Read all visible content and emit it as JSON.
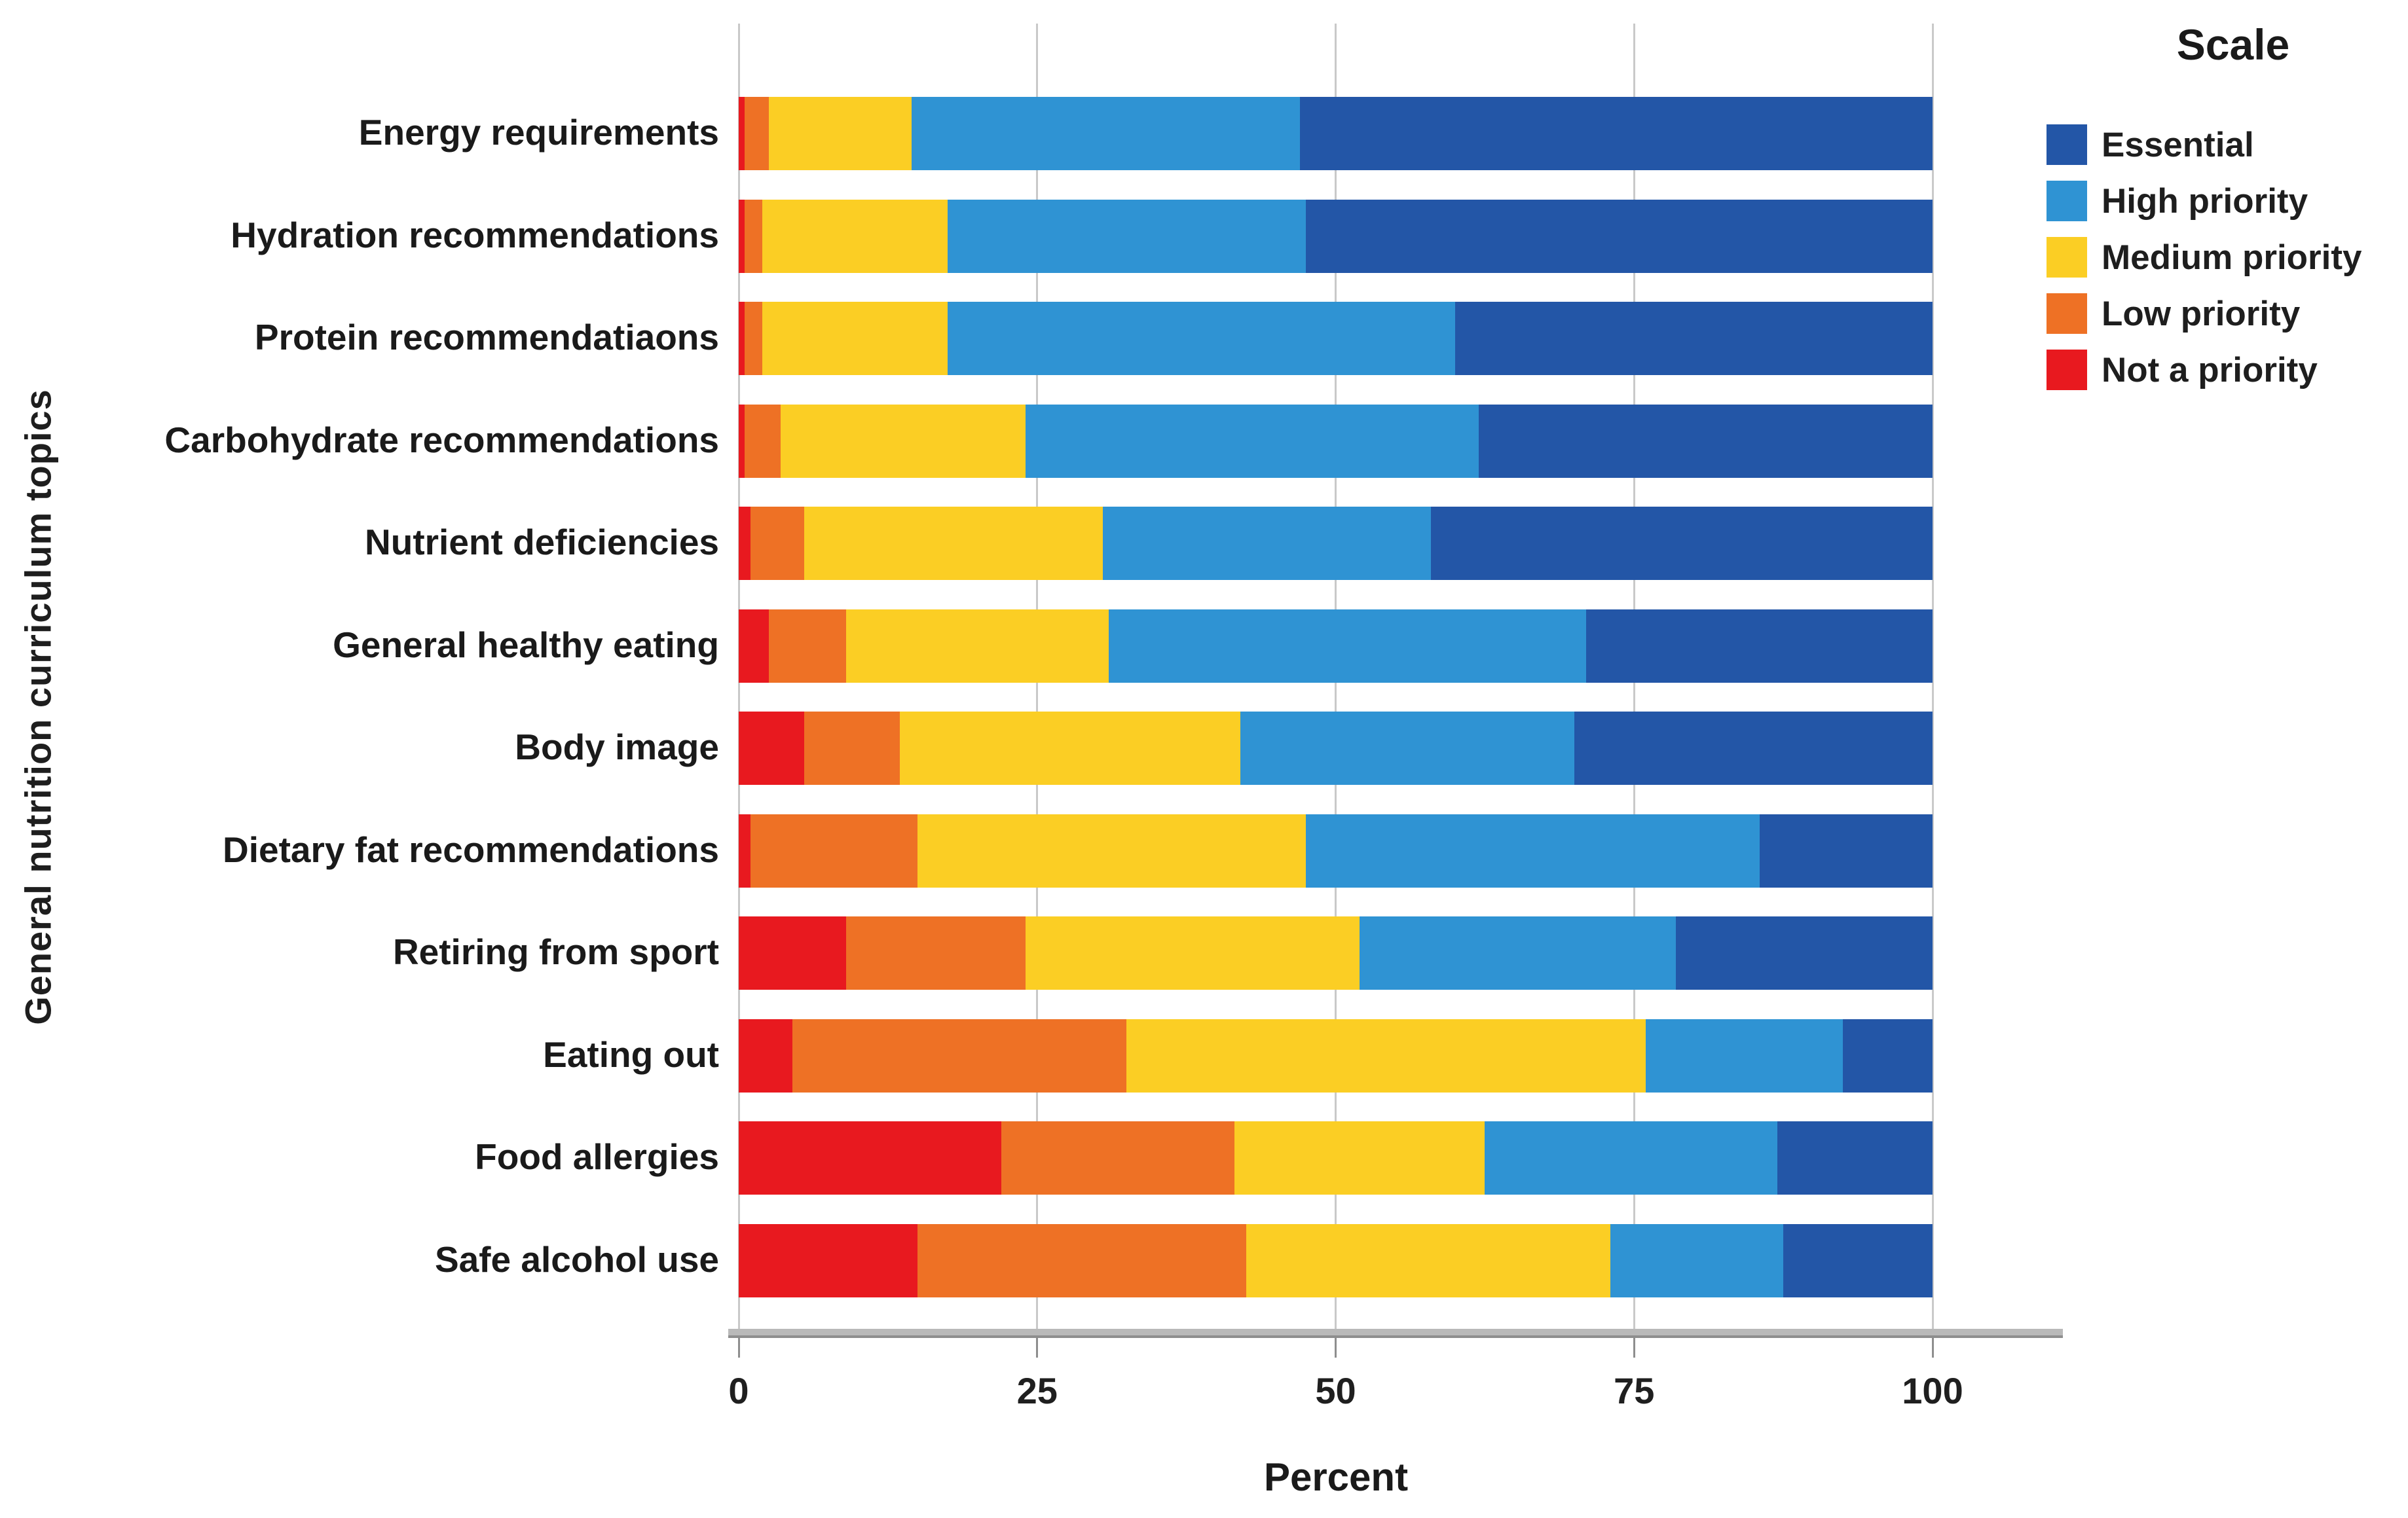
{
  "chart_data": {
    "type": "bar",
    "orientation": "horizontal-stacked",
    "title": "",
    "xlabel": "Percent",
    "ylabel": "General nutrition curriculum topics",
    "xlim": [
      0,
      100
    ],
    "x_ticks": [
      0,
      25,
      50,
      75,
      100
    ],
    "grid": true,
    "legend_title": "Scale",
    "legend_position": "top-right",
    "legend_order": [
      "Essential",
      "High priority",
      "Medium priority",
      "Low priority",
      "Not a priority"
    ],
    "stack_order_left_to_right": [
      "Not a priority",
      "Low priority",
      "Medium priority",
      "High priority",
      "Essential"
    ],
    "categories": [
      "Energy requirements",
      "Hydration recommendations",
      "Protein recommendatiaons",
      "Carbohydrate recommendations",
      "Nutrient deficiencies",
      "General healthy eating",
      "Body image",
      "Dietary fat recommendations",
      "Retiring from sport",
      "Eating out",
      "Food allergies",
      "Safe alcohol use"
    ],
    "series": [
      {
        "name": "Not a priority",
        "color": "#E8191F",
        "values": [
          0.5,
          0.5,
          0.5,
          0.5,
          1,
          2.5,
          5.5,
          1,
          9,
          4.5,
          22,
          15
        ]
      },
      {
        "name": "Low priority",
        "color": "#EE7125",
        "values": [
          2,
          1.5,
          1.5,
          3,
          4.5,
          6.5,
          8,
          14,
          15,
          28,
          19.5,
          27.5
        ]
      },
      {
        "name": "Medium priority",
        "color": "#FBCE24",
        "values": [
          12,
          15.5,
          15.5,
          20.5,
          25,
          22,
          28.5,
          32.5,
          28,
          43.5,
          21,
          30.5
        ]
      },
      {
        "name": "High priority",
        "color": "#2F93D3",
        "values": [
          32.5,
          30,
          42.5,
          38,
          27.5,
          40,
          28,
          38,
          26.5,
          16.5,
          24.5,
          14.5
        ]
      },
      {
        "name": "Essential",
        "color": "#2356A7",
        "values": [
          53,
          52.5,
          40,
          38,
          42,
          29,
          30,
          14.5,
          21.5,
          7.5,
          13,
          12.5
        ]
      }
    ]
  },
  "axes": {
    "x_title": "Percent",
    "y_title": "General nutrition curriculum topics",
    "tick_labels": [
      "0",
      "25",
      "50",
      "75",
      "100"
    ]
  },
  "legend": {
    "title": "Scale",
    "items": [
      {
        "label": "Essential",
        "color": "#2356A7"
      },
      {
        "label": "High priority",
        "color": "#2F93D3"
      },
      {
        "label": "Medium priority",
        "color": "#FBCE24"
      },
      {
        "label": "Low priority",
        "color": "#EE7125"
      },
      {
        "label": "Not a priority",
        "color": "#E8191F"
      }
    ]
  },
  "style_colors": {
    "gridline": "#c9c9c9",
    "axis_line": "#8e8e8e",
    "text": "#1a1a1a",
    "background": "#ffffff"
  }
}
